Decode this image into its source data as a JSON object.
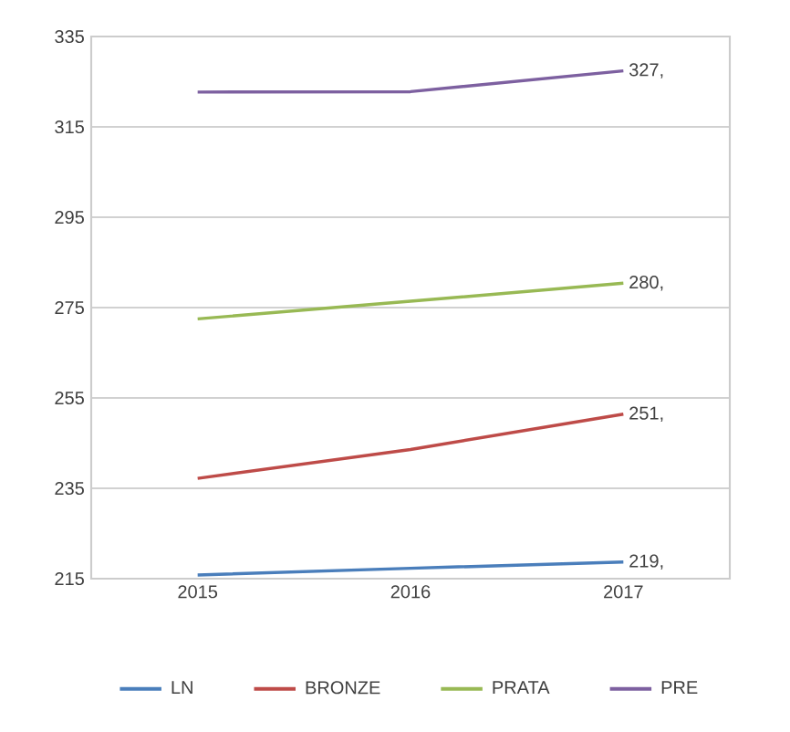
{
  "chart_data": {
    "type": "line",
    "categories": [
      "2015",
      "2016",
      "2017"
    ],
    "series": [
      {
        "name": "LN",
        "color": "#4a7ebb",
        "values": [
          215.8,
          217.3,
          218.7
        ],
        "value_labels": [
          null,
          null,
          "219,"
        ]
      },
      {
        "name": "BRONZE",
        "color": "#be4b48",
        "values": [
          237.2,
          243.6,
          251.4
        ],
        "value_labels": [
          null,
          null,
          "251,"
        ]
      },
      {
        "name": "PRATA",
        "color": "#98b954",
        "values": [
          272.5,
          276.4,
          280.4
        ],
        "value_labels": [
          null,
          null,
          "280,"
        ]
      },
      {
        "name": "PRE",
        "color": "#7d60a0",
        "values": [
          322.7,
          322.8,
          327.4
        ],
        "value_labels": [
          null,
          null,
          "327,"
        ]
      }
    ],
    "ylim": [
      215,
      335
    ],
    "yticks": [
      215,
      235,
      255,
      275,
      295,
      315,
      335
    ],
    "grid": "y",
    "legend": "bottom",
    "marker": "none"
  }
}
